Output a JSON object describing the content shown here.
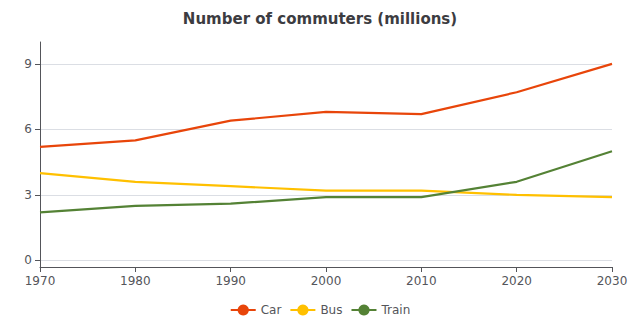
{
  "chart_data": {
    "type": "line",
    "title": "Number of commuters (millions)",
    "x": [
      1970,
      1980,
      1990,
      2000,
      2010,
      2020,
      2030
    ],
    "series": [
      {
        "name": "Car",
        "color": "#E8450A",
        "values": [
          5.2,
          5.5,
          6.4,
          6.8,
          6.7,
          7.7,
          9.0
        ]
      },
      {
        "name": "Bus",
        "color": "#FFC000",
        "values": [
          4.0,
          3.6,
          3.4,
          3.2,
          3.2,
          3.0,
          2.9
        ]
      },
      {
        "name": "Train",
        "color": "#548235",
        "values": [
          2.2,
          2.5,
          2.6,
          2.9,
          2.9,
          3.6,
          5.0
        ]
      }
    ],
    "xlim": [
      1970,
      2030
    ],
    "xticks": [
      1970,
      1980,
      1990,
      2000,
      2010,
      2020,
      2030
    ],
    "ylim": [
      -0.3,
      10
    ],
    "yticks": [
      0,
      3,
      6,
      9
    ],
    "grid": true,
    "legend": "bottom"
  }
}
